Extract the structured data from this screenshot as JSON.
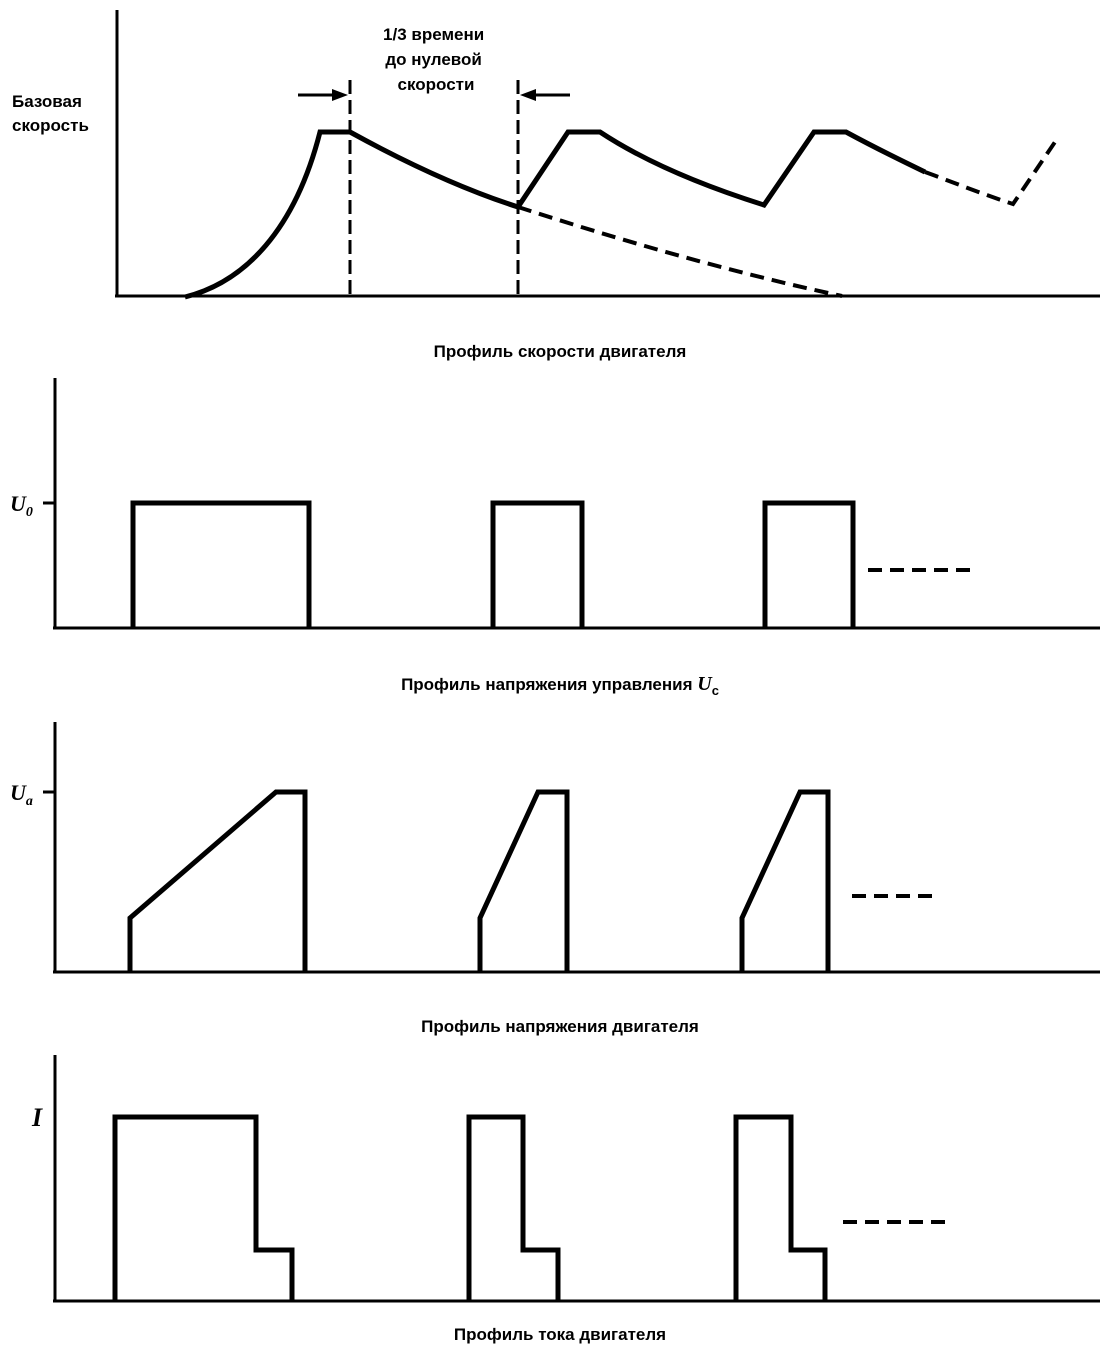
{
  "speed_panel": {
    "base_speed_label": [
      "Базовая",
      "скорость"
    ],
    "interval_label": [
      "1/3 времени",
      "до нулевой",
      "скорости"
    ],
    "caption": "Профиль скорости двигателя"
  },
  "control_panel": {
    "level_label": {
      "main": "U",
      "sub": "0"
    },
    "caption": {
      "main": "Профиль напряжения управления ",
      "symbol": "U",
      "sub": "c"
    }
  },
  "motor_voltage_panel": {
    "level_label": {
      "main": "U",
      "sub": "a"
    },
    "caption": "Профиль напряжения двигателя"
  },
  "current_panel": {
    "level_label": "I",
    "caption": "Профиль тока двигателя"
  }
}
